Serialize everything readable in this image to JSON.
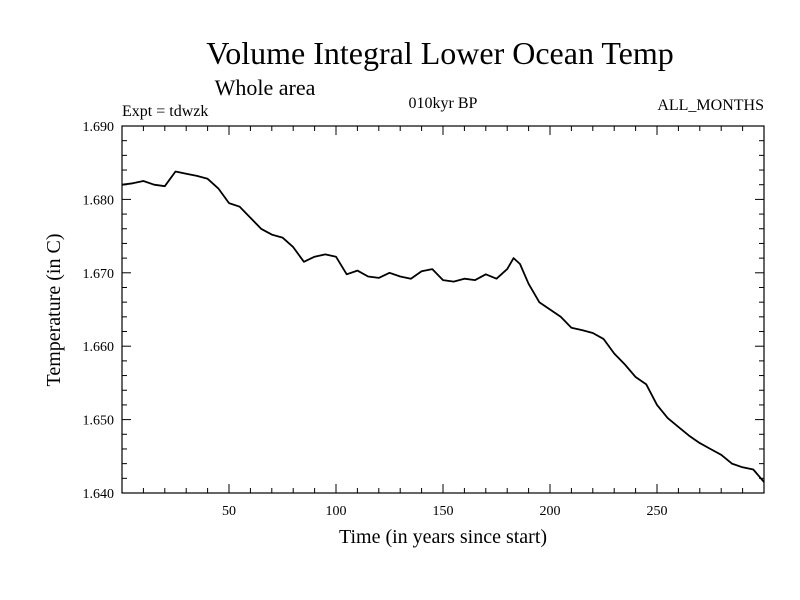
{
  "chart_data": {
    "type": "line",
    "title": "Volume Integral Lower Ocean Temp",
    "subtitle": "Whole area",
    "annotations": {
      "left": "Expt = tdwzk",
      "center": "010kyr BP",
      "right": "ALL_MONTHS"
    },
    "xlabel": "Time (in years since start)",
    "ylabel": "Temperature (in C)",
    "xlim": [
      0,
      300
    ],
    "ylim": [
      1.64,
      1.69
    ],
    "xticks": [
      50,
      100,
      150,
      200,
      250
    ],
    "xtick_labels": [
      "50",
      "100",
      "150",
      "200",
      "250"
    ],
    "yticks": [
      1.64,
      1.65,
      1.66,
      1.67,
      1.68,
      1.69
    ],
    "ytick_labels": [
      "1.640",
      "1.650",
      "1.660",
      "1.670",
      "1.680",
      "1.690"
    ],
    "grid": false,
    "series": [
      {
        "x": [
          0,
          5,
          10,
          15,
          20,
          25,
          30,
          35,
          40,
          45,
          50,
          55,
          60,
          65,
          70,
          75,
          80,
          85,
          90,
          95,
          100,
          105,
          110,
          115,
          120,
          125,
          130,
          135,
          140,
          145,
          150,
          155,
          160,
          165,
          170,
          175,
          180,
          183,
          186,
          190,
          195,
          200,
          205,
          210,
          215,
          220,
          225,
          230,
          235,
          240,
          245,
          250,
          255,
          260,
          265,
          270,
          275,
          280,
          285,
          290,
          295,
          300
        ],
        "values": [
          1.682,
          1.6822,
          1.6825,
          1.682,
          1.6818,
          1.6838,
          1.6835,
          1.6832,
          1.6828,
          1.6815,
          1.6795,
          1.679,
          1.6775,
          1.676,
          1.6752,
          1.6748,
          1.6735,
          1.6715,
          1.6722,
          1.6725,
          1.6722,
          1.6698,
          1.6703,
          1.6695,
          1.6693,
          1.67,
          1.6695,
          1.6692,
          1.6702,
          1.6705,
          1.669,
          1.6688,
          1.6692,
          1.669,
          1.6698,
          1.6692,
          1.6705,
          1.672,
          1.6712,
          1.6685,
          1.666,
          1.665,
          1.664,
          1.6625,
          1.6622,
          1.6618,
          1.661,
          1.659,
          1.6575,
          1.6558,
          1.6548,
          1.652,
          1.6502,
          1.649,
          1.6478,
          1.6468,
          1.646,
          1.6452,
          1.644,
          1.6435,
          1.6432,
          1.6415
        ]
      }
    ]
  }
}
